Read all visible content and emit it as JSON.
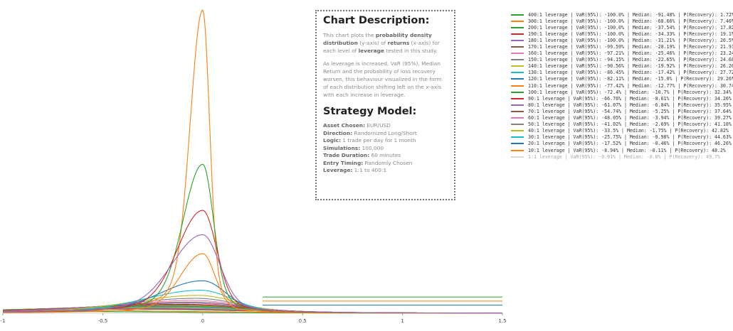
{
  "description": {
    "title": "Chart Description:",
    "p1": [
      {
        "t": "This chart plots the ",
        "b": false
      },
      {
        "t": "probability density distribution",
        "b": true
      },
      {
        "t": " (y-axis) of ",
        "b": false
      },
      {
        "t": "returns",
        "b": true
      },
      {
        "t": " (x-axis) for each level of ",
        "b": false
      },
      {
        "t": "leverage",
        "b": true
      },
      {
        "t": " tested in this study.",
        "b": false
      }
    ],
    "p2": "As leverage is increased, VaR (95%), Median Return and the probability of loss recovery worsen, this behaviour visualized in the form of each distribution shifting left on the x-axis with each increase in leverage."
  },
  "strategy": {
    "title": "Strategy Model:",
    "rows": [
      {
        "label": "Asset Chosen:",
        "value": " EUR/USD"
      },
      {
        "label": "Direction:",
        "value": " Randomized Long/Short"
      },
      {
        "label": "Logic:",
        "value": " 1 trade per day for 1 month"
      },
      {
        "label": "Simulations:",
        "value": " 100,000"
      },
      {
        "label": "Trade Duration:",
        "value": " 60 minutes"
      },
      {
        "label": "Entry Timing:",
        "value": " Randomly Chosen"
      },
      {
        "label": "Leverage:",
        "value": " 1:1 to 400:1"
      }
    ]
  },
  "chart_data": {
    "type": "line",
    "title": "",
    "xlabel": "",
    "ylabel": "",
    "xlim": [
      -1,
      1.5
    ],
    "x_ticks": [
      "-1",
      "-0.5",
      "0",
      "0.5",
      "1",
      "1.5"
    ],
    "grid": false,
    "legend_position": "right",
    "series": [
      {
        "name": "400:1 leverage | VaR(95%): -100.0% | Median: -91.48% | P(Recovery): 1.72%",
        "color": "#2ca02c",
        "peak_x": -0.92,
        "peak_density": 0.07,
        "width": 0.9
      },
      {
        "name": "300:1 leverage | VaR(95%): -100.0% | Median: -68.66% | P(Recovery): 7.46%",
        "color": "#ff7f0e",
        "peak_x": -0.69,
        "peak_density": 0.1,
        "width": 0.85
      },
      {
        "name": "200:1 leverage | VaR(95%): -100.0% | Median: -37.54% | P(Recovery): 17.82%",
        "color": "#2ca02c",
        "peak_x": -0.38,
        "peak_density": 0.15,
        "width": 0.7
      },
      {
        "name": "190:1 leverage | VaR(95%): -100.0% | Median: -34.33% | P(Recovery): 19.1%",
        "color": "#d62728",
        "peak_x": -0.34,
        "peak_density": 0.16,
        "width": 0.68
      },
      {
        "name": "180:1 leverage | VaR(95%): -100.0% | Median: -31.21% | P(Recovery): 20.5%",
        "color": "#9467bd",
        "peak_x": -0.31,
        "peak_density": 0.17,
        "width": 0.65
      },
      {
        "name": "170:1 leverage | VaR(95%): -99.59% | Median: -28.19% | P(Recovery): 21.91%",
        "color": "#8c564b",
        "peak_x": -0.28,
        "peak_density": 0.18,
        "width": 0.62
      },
      {
        "name": "160:1 leverage | VaR(95%): -97.21% | Median: -25.46% | P(Recovery): 23.24%",
        "color": "#e377c2",
        "peak_x": -0.25,
        "peak_density": 0.19,
        "width": 0.6
      },
      {
        "name": "150:1 leverage | VaR(95%): -94.15% | Median: -22.65% | P(Recovery): 24.68%",
        "color": "#7f7f7f",
        "peak_x": -0.22,
        "peak_density": 0.2,
        "width": 0.57
      },
      {
        "name": "140:1 leverage | VaR(95%): -90.56% | Median: -19.92% | P(Recovery): 26.26%",
        "color": "#bcbd22",
        "peak_x": -0.2,
        "peak_density": 0.22,
        "width": 0.54
      },
      {
        "name": "130:1 leverage | VaR(95%): -86.45% | Median: -17.42% | P(Recovery): 27.72%",
        "color": "#17becf",
        "peak_x": -0.17,
        "peak_density": 0.24,
        "width": 0.51
      },
      {
        "name": "120:1 leverage | VaR(95%): -82.11% | Median: -15.0% | P(Recovery): 29.26%",
        "color": "#1f77b4",
        "peak_x": -0.15,
        "peak_density": 0.26,
        "width": 0.48
      },
      {
        "name": "110:1 leverage | VaR(95%): -77.42% | Median: -12.77% | P(Recovery): 30.74%",
        "color": "#ff7f0e",
        "peak_x": -0.13,
        "peak_density": 0.28,
        "width": 0.45
      },
      {
        "name": "100:1 leverage | VaR(95%): -72.4% | Median: -10.7% | P(Recovery): 32.34%",
        "color": "#2ca02c",
        "peak_x": -0.11,
        "peak_density": 0.3,
        "width": 0.42
      },
      {
        "name": "90:1 leverage | VaR(95%): -66.76% | Median: -8.61% | P(Recovery): 34.26%",
        "color": "#d62728",
        "peak_x": -0.09,
        "peak_density": 0.33,
        "width": 0.39
      },
      {
        "name": "80:1 leverage | VaR(95%): -61.07% | Median: -6.84% | P(Recovery): 35.95%",
        "color": "#9467bd",
        "peak_x": -0.07,
        "peak_density": 0.37,
        "width": 0.36
      },
      {
        "name": "70:1 leverage | VaR(95%): -54.74% | Median: -5.25% | P(Recovery): 37.64%",
        "color": "#8c564b",
        "peak_x": -0.05,
        "peak_density": 0.41,
        "width": 0.33
      },
      {
        "name": "60:1 leverage | VaR(95%): -48.05% | Median: -3.94% | P(Recovery): 39.27%",
        "color": "#e377c2",
        "peak_x": -0.04,
        "peak_density": 0.47,
        "width": 0.3
      },
      {
        "name": "50:1 leverage | VaR(95%): -41.02% | Median: -2.69% | P(Recovery): 41.18%",
        "color": "#7f7f7f",
        "peak_x": -0.03,
        "peak_density": 0.55,
        "width": 0.27
      },
      {
        "name": "40:1 leverage | VaR(95%): -33.5% | Median: -1.75% | P(Recovery): 42.82%",
        "color": "#bcbd22",
        "peak_x": -0.02,
        "peak_density": 0.66,
        "width": 0.24
      },
      {
        "name": "30:1 leverage | VaR(95%): -25.75% | Median: -0.98% | P(Recovery): 44.63%",
        "color": "#17becf",
        "peak_x": -0.01,
        "peak_density": 0.85,
        "width": 0.2
      },
      {
        "name": "20:1 leverage | VaR(95%): -17.52% | Median: -0.46% | P(Recovery): 46.26%",
        "color": "#1f77b4",
        "peak_x": 0.0,
        "peak_density": 1.2,
        "width": 0.15
      },
      {
        "name": "10:1 leverage | VaR(95%): -8.94% | Median: -0.11% | P(Recovery): 48.2%",
        "color": "#ff7f0e",
        "peak_x": 0.0,
        "peak_density": 2.2,
        "width": 0.08
      },
      {
        "name": "1:1 leverage | VaR(95%): -0.91% | Median: -0.0% | P(Recovery): 49.7%",
        "color": "#aaaaaa",
        "peak_x": 0.0,
        "peak_density": 0,
        "width": 0.01
      }
    ],
    "overlay_peaks": [
      {
        "color": "#ff7f0e",
        "peak_x": 0.0,
        "peak_density": 11.2,
        "width": 0.045
      },
      {
        "color": "#2ca02c",
        "peak_x": 0.0,
        "peak_density": 5.5,
        "width": 0.07
      },
      {
        "color": "#d62728",
        "peak_x": 0.0,
        "peak_density": 3.8,
        "width": 0.09
      },
      {
        "color": "#9467bd",
        "peak_x": 0.0,
        "peak_density": 2.9,
        "width": 0.11
      }
    ]
  }
}
